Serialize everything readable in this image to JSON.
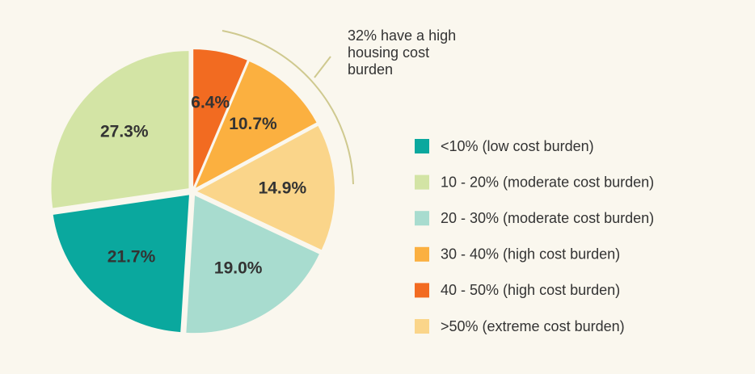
{
  "chart_data": {
    "type": "pie",
    "categories": [
      "<10% (low cost burden)",
      "10 - 20% (moderate cost burden)",
      "20 - 30% (moderate cost burden)",
      "30 - 40% (high cost burden)",
      "40 - 50% (high cost burden)",
      ">50% (extreme cost burden)"
    ],
    "values": [
      21.7,
      27.3,
      19.0,
      10.7,
      6.4,
      14.9
    ],
    "value_labels": [
      "21.7%",
      "27.3%",
      "19.0%",
      "10.7%",
      "6.4%",
      "14.9%"
    ],
    "colors": [
      "#0aa89e",
      "#d3e4a5",
      "#a8dccf",
      "#fbb040",
      "#f26b21",
      "#fad58a"
    ],
    "annotation": "32% have a high housing cost burden",
    "legend": "right"
  }
}
